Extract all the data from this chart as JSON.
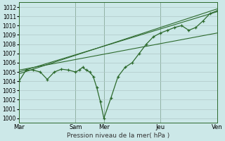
{
  "background_color": "#cce8e8",
  "grid_color": "#b0c8c8",
  "line_color": "#2d6a2d",
  "xlabel": "Pression niveau de la mer( hPa )",
  "ylim": [
    999.5,
    1012.5
  ],
  "yticks": [
    1000,
    1001,
    1002,
    1003,
    1004,
    1005,
    1006,
    1007,
    1008,
    1009,
    1010,
    1011,
    1012
  ],
  "day_labels": [
    "Mar",
    "Sam",
    "Mer",
    "Jeu",
    "Ven"
  ],
  "day_x": [
    0,
    4,
    6,
    10,
    14
  ],
  "xlim": [
    0,
    14
  ],
  "main_x": [
    0,
    0.5,
    1,
    1.5,
    2,
    2.5,
    3,
    3.5,
    4,
    4.25,
    4.5,
    4.75,
    5,
    5.25,
    5.5,
    5.75,
    6,
    6.5,
    7,
    7.5,
    8,
    8.5,
    9,
    9.5,
    10,
    10.5,
    11,
    11.5,
    12,
    12.5,
    13,
    13.5,
    14
  ],
  "main_y": [
    1004.0,
    1005.2,
    1005.2,
    1005.0,
    1004.2,
    1005.0,
    1005.3,
    1005.2,
    1005.0,
    1005.2,
    1005.5,
    1005.2,
    1005.0,
    1004.5,
    1003.3,
    1001.8,
    1000.0,
    1002.2,
    1004.5,
    1005.5,
    1006.0,
    1007.0,
    1008.0,
    1008.8,
    1009.2,
    1009.5,
    1009.8,
    1010.0,
    1009.5,
    1009.8,
    1010.5,
    1011.3,
    1011.6
  ],
  "trend1_x": [
    0,
    14
  ],
  "trend1_y": [
    1005.0,
    1011.5
  ],
  "trend2_x": [
    0,
    14
  ],
  "trend2_y": [
    1004.8,
    1011.8
  ],
  "trend3_x": [
    0,
    14
  ],
  "trend3_y": [
    1005.2,
    1009.2
  ]
}
